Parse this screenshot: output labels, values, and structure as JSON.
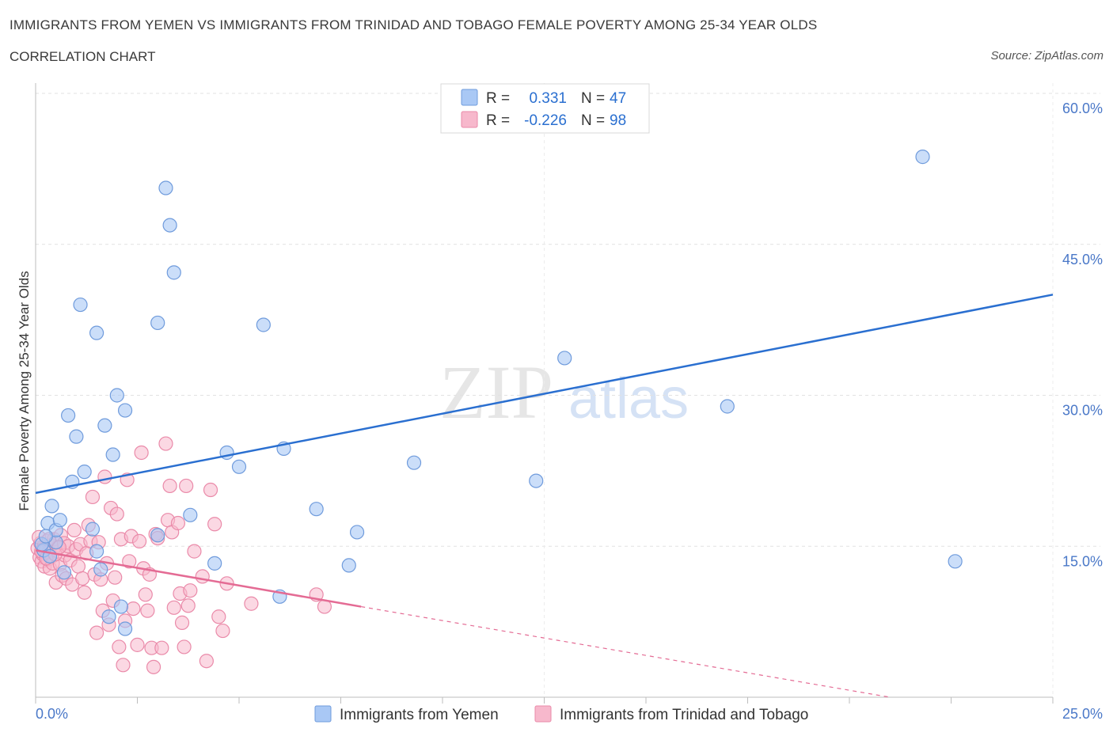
{
  "header": {
    "title": "IMMIGRANTS FROM YEMEN VS IMMIGRANTS FROM TRINIDAD AND TOBAGO FEMALE POVERTY AMONG 25-34 YEAR OLDS",
    "subtitle": "CORRELATION CHART",
    "source": "Source: ZipAtlas.com"
  },
  "watermark": {
    "zip": "ZIP",
    "atlas": "atlas"
  },
  "legend": {
    "r_label": "R =",
    "n_label": "N =",
    "yemen_r": "0.331",
    "yemen_n": "47",
    "tt_r": "-0.226",
    "tt_n": "98"
  },
  "colors": {
    "yemen_fill": "#a9c8f5",
    "yemen_stroke": "#6f9bdc",
    "yemen_line": "#2a6fd0",
    "tt_fill": "#f7b8cc",
    "tt_stroke": "#ea8aa9",
    "tt_line": "#e46b94",
    "tick_text": "#4a78c8"
  },
  "chart_data": {
    "type": "scatter",
    "title": "IMMIGRANTS FROM YEMEN VS IMMIGRANTS FROM TRINIDAD AND TOBAGO FEMALE POVERTY AMONG 25-34 YEAR OLDS",
    "xlabel": "",
    "ylabel": "Female Poverty Among 25-34 Year Olds",
    "xlim": [
      0,
      25
    ],
    "ylim": [
      0,
      60
    ],
    "x_tick_labels": {
      "min": "0.0%",
      "max": "25.0%"
    },
    "y_ticks": [
      {
        "value": 15,
        "label": "15.0%"
      },
      {
        "value": 30,
        "label": "30.0%"
      },
      {
        "value": 45,
        "label": "45.0%"
      },
      {
        "value": 60,
        "label": "60.0%"
      }
    ],
    "grid": true,
    "series": [
      {
        "name": "Immigrants from Yemen",
        "points": [
          [
            0.2,
            14.6
          ],
          [
            0.3,
            17.3
          ],
          [
            0.4,
            19.0
          ],
          [
            0.5,
            15.4
          ],
          [
            0.5,
            16.6
          ],
          [
            0.6,
            17.6
          ],
          [
            0.7,
            12.4
          ],
          [
            0.8,
            28.0
          ],
          [
            0.9,
            21.4
          ],
          [
            1.0,
            25.9
          ],
          [
            1.1,
            39.0
          ],
          [
            1.2,
            22.4
          ],
          [
            1.4,
            16.7
          ],
          [
            1.5,
            14.5
          ],
          [
            1.5,
            36.2
          ],
          [
            1.6,
            12.7
          ],
          [
            1.7,
            27.0
          ],
          [
            1.8,
            8.0
          ],
          [
            1.9,
            24.1
          ],
          [
            2.0,
            30.0
          ],
          [
            2.1,
            9.0
          ],
          [
            2.2,
            28.5
          ],
          [
            2.2,
            6.8
          ],
          [
            3.0,
            16.1
          ],
          [
            3.0,
            37.2
          ],
          [
            3.2,
            50.6
          ],
          [
            3.3,
            46.9
          ],
          [
            3.4,
            42.2
          ],
          [
            3.8,
            18.1
          ],
          [
            4.4,
            13.3
          ],
          [
            4.7,
            24.3
          ],
          [
            5.0,
            22.9
          ],
          [
            5.6,
            37.0
          ],
          [
            6.0,
            10.0
          ],
          [
            6.1,
            24.7
          ],
          [
            6.9,
            18.7
          ],
          [
            7.7,
            13.1
          ],
          [
            7.9,
            16.4
          ],
          [
            9.3,
            23.3
          ],
          [
            12.3,
            21.5
          ],
          [
            13.0,
            33.7
          ],
          [
            17.0,
            28.9
          ],
          [
            21.8,
            53.7
          ],
          [
            22.6,
            13.5
          ],
          [
            0.15,
            15.2
          ],
          [
            0.35,
            14.0
          ],
          [
            0.25,
            16.0
          ]
        ]
      },
      {
        "name": "Immigrants from Trinidad and Tobago",
        "points": [
          [
            0.05,
            14.8
          ],
          [
            0.1,
            13.9
          ],
          [
            0.12,
            15.3
          ],
          [
            0.15,
            13.5
          ],
          [
            0.18,
            14.2
          ],
          [
            0.2,
            15.0
          ],
          [
            0.22,
            13.0
          ],
          [
            0.25,
            14.6
          ],
          [
            0.28,
            15.5
          ],
          [
            0.3,
            13.7
          ],
          [
            0.32,
            14.4
          ],
          [
            0.35,
            12.8
          ],
          [
            0.38,
            15.1
          ],
          [
            0.4,
            14.0
          ],
          [
            0.42,
            13.3
          ],
          [
            0.45,
            15.7
          ],
          [
            0.5,
            11.4
          ],
          [
            0.55,
            14.9
          ],
          [
            0.6,
            13.2
          ],
          [
            0.62,
            16.1
          ],
          [
            0.65,
            12.1
          ],
          [
            0.7,
            15.3
          ],
          [
            0.72,
            14.1
          ],
          [
            0.75,
            11.8
          ],
          [
            0.8,
            15.0
          ],
          [
            0.85,
            13.6
          ],
          [
            0.9,
            11.2
          ],
          [
            0.95,
            16.6
          ],
          [
            1.0,
            14.7
          ],
          [
            1.05,
            13.0
          ],
          [
            1.1,
            15.2
          ],
          [
            1.15,
            11.8
          ],
          [
            1.2,
            10.4
          ],
          [
            1.25,
            14.3
          ],
          [
            1.3,
            17.1
          ],
          [
            1.35,
            15.5
          ],
          [
            1.4,
            19.9
          ],
          [
            1.45,
            12.2
          ],
          [
            1.5,
            6.4
          ],
          [
            1.55,
            15.4
          ],
          [
            1.6,
            11.7
          ],
          [
            1.65,
            8.6
          ],
          [
            1.7,
            21.9
          ],
          [
            1.75,
            13.3
          ],
          [
            1.8,
            7.2
          ],
          [
            1.85,
            18.8
          ],
          [
            1.9,
            9.6
          ],
          [
            1.95,
            11.9
          ],
          [
            2.0,
            18.2
          ],
          [
            2.05,
            5.0
          ],
          [
            2.1,
            15.7
          ],
          [
            2.15,
            3.2
          ],
          [
            2.2,
            7.6
          ],
          [
            2.25,
            21.6
          ],
          [
            2.3,
            13.5
          ],
          [
            2.35,
            16.0
          ],
          [
            2.4,
            8.8
          ],
          [
            2.5,
            5.2
          ],
          [
            2.55,
            15.5
          ],
          [
            2.6,
            24.3
          ],
          [
            2.65,
            12.8
          ],
          [
            2.7,
            10.2
          ],
          [
            2.75,
            8.6
          ],
          [
            2.8,
            12.2
          ],
          [
            2.85,
            4.9
          ],
          [
            2.9,
            3.0
          ],
          [
            2.95,
            16.2
          ],
          [
            3.0,
            15.8
          ],
          [
            3.1,
            4.9
          ],
          [
            3.2,
            25.2
          ],
          [
            3.25,
            17.6
          ],
          [
            3.3,
            21.0
          ],
          [
            3.35,
            16.4
          ],
          [
            3.4,
            8.9
          ],
          [
            3.5,
            17.3
          ],
          [
            3.55,
            10.3
          ],
          [
            3.6,
            7.4
          ],
          [
            3.65,
            5.0
          ],
          [
            3.7,
            21.0
          ],
          [
            3.75,
            9.1
          ],
          [
            3.8,
            10.6
          ],
          [
            3.9,
            14.5
          ],
          [
            4.1,
            12.0
          ],
          [
            4.2,
            3.6
          ],
          [
            4.3,
            20.6
          ],
          [
            4.4,
            17.2
          ],
          [
            4.5,
            8.0
          ],
          [
            4.6,
            6.6
          ],
          [
            4.7,
            11.3
          ],
          [
            5.3,
            9.3
          ],
          [
            6.9,
            10.2
          ],
          [
            7.1,
            9.0
          ],
          [
            0.08,
            15.9
          ],
          [
            0.14,
            14.5
          ],
          [
            0.26,
            13.8
          ],
          [
            0.33,
            15.7
          ],
          [
            0.48,
            14.2
          ],
          [
            0.58,
            14.9
          ]
        ]
      }
    ],
    "trend_lines": [
      {
        "series": "Immigrants from Yemen",
        "x0": 0,
        "y0": 20.3,
        "x1": 25,
        "y1": 40.0,
        "style": "solid"
      },
      {
        "series": "Immigrants from Trinidad and Tobago",
        "x0": 0,
        "y0": 14.6,
        "x1": 8.0,
        "y1": 9.0,
        "style": "solid",
        "dashed_to_x": 21.0,
        "dashed_to_y": 0
      }
    ]
  }
}
